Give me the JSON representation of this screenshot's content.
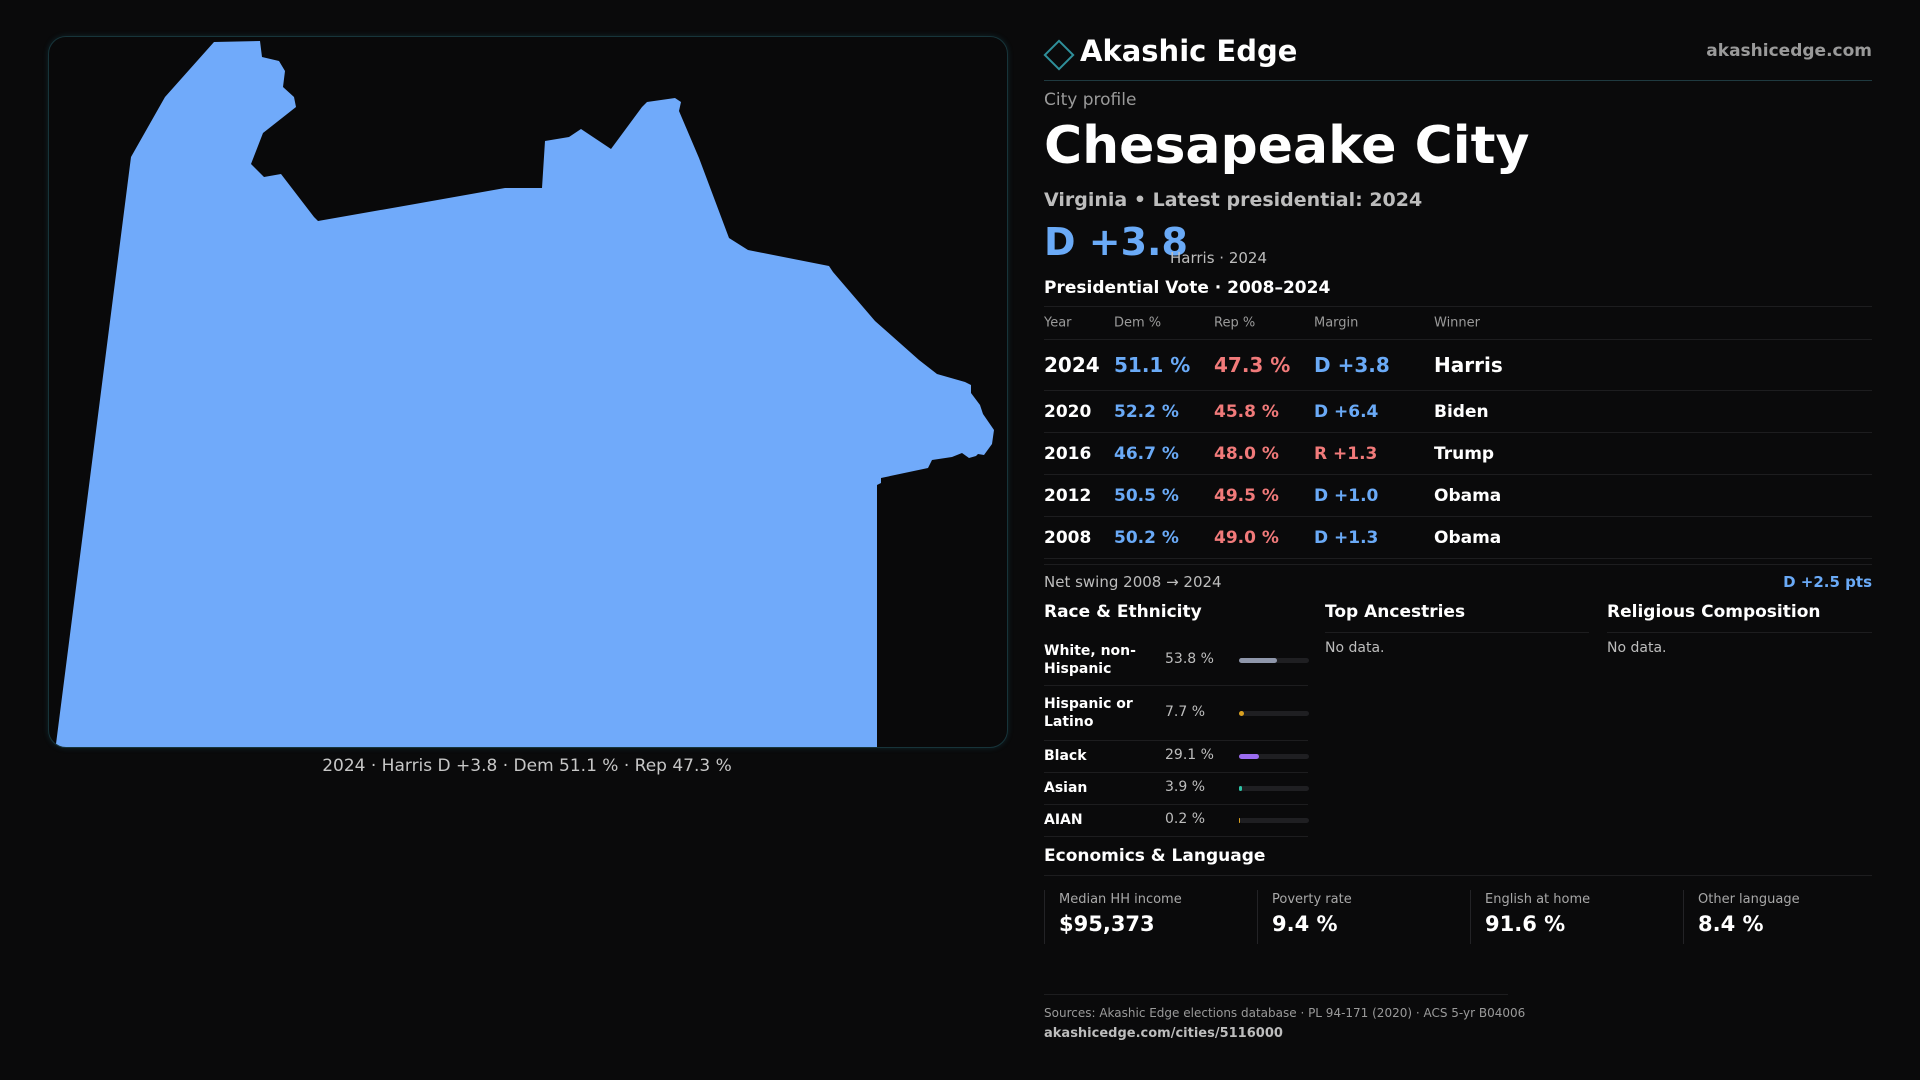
{
  "map": {
    "fill_color": "#70aafa",
    "caption": "2024 · Harris D +3.8 · Dem 51.1 % · Rep 47.3 %"
  },
  "brand": {
    "name": "Akashic Edge",
    "url": "akashicedge.com"
  },
  "profile": {
    "kicker": "City profile",
    "city": "Chesapeake City",
    "subtitle": "Virginia • Latest presidential: 2024",
    "headline_margin": "D +3.8",
    "headline_note": "Harris · 2024"
  },
  "vote": {
    "title": "Presidential Vote · 2008–2024",
    "headers": {
      "year": "Year",
      "dem": "Dem %",
      "rep": "Rep %",
      "margin": "Margin",
      "winner": "Winner"
    },
    "rows": [
      {
        "year": "2024",
        "dem": "51.1 %",
        "rep": "47.3 %",
        "margin": "D +3.8",
        "party": "dem",
        "winner": "Harris"
      },
      {
        "year": "2020",
        "dem": "52.2 %",
        "rep": "45.8 %",
        "margin": "D +6.4",
        "party": "dem",
        "winner": "Biden"
      },
      {
        "year": "2016",
        "dem": "46.7 %",
        "rep": "48.0 %",
        "margin": "R +1.3",
        "party": "rep",
        "winner": "Trump"
      },
      {
        "year": "2012",
        "dem": "50.5 %",
        "rep": "49.5 %",
        "margin": "D +1.0",
        "party": "dem",
        "winner": "Obama"
      },
      {
        "year": "2008",
        "dem": "50.2 %",
        "rep": "49.0 %",
        "margin": "D +1.3",
        "party": "dem",
        "winner": "Obama"
      }
    ],
    "swing_label": "Net swing 2008 → 2024",
    "swing_value": "D +2.5 pts"
  },
  "race": {
    "title": "Race & Ethnicity",
    "rows": [
      {
        "label": "White, non-Hispanic",
        "pct": "53.8 %",
        "value": 53.8,
        "color": "#8f97ab"
      },
      {
        "label": "Hispanic or Latino",
        "pct": "7.7 %",
        "value": 7.7,
        "color": "#d9a020"
      },
      {
        "label": "Black",
        "pct": "29.1 %",
        "value": 29.1,
        "color": "#9b6cf0"
      },
      {
        "label": "Asian",
        "pct": "3.9 %",
        "value": 3.9,
        "color": "#2fc3a6"
      },
      {
        "label": "AIAN",
        "pct": "0.2 %",
        "value": 0.2,
        "color": "#d9a020"
      }
    ]
  },
  "ancestries": {
    "title": "Top Ancestries",
    "empty": "No data."
  },
  "religion": {
    "title": "Religious Composition",
    "empty": "No data."
  },
  "economics": {
    "title": "Economics & Language",
    "stats": [
      {
        "label": "Median HH income",
        "value": "$95,373"
      },
      {
        "label": "Poverty rate",
        "value": "9.4 %"
      },
      {
        "label": "English at home",
        "value": "91.6 %"
      },
      {
        "label": "Other language",
        "value": "8.4 %"
      }
    ]
  },
  "sources": {
    "text": "Sources: Akashic Edge elections database · PL 94-171 (2020) · ACS 5-yr B04006",
    "url": "akashicedge.com/cities/5116000"
  }
}
